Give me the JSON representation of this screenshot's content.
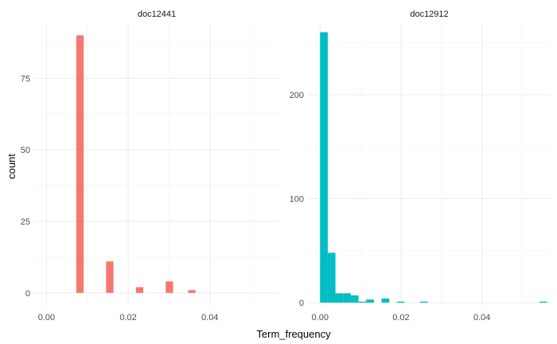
{
  "chart_data": {
    "type": "bar",
    "xlabel": "Term_frequency",
    "ylabel": "count",
    "grid": true,
    "legend": "none",
    "panels": [
      {
        "title": "doc12441",
        "color": "#f8766d",
        "xlim": [
          -0.003,
          0.057
        ],
        "ylim": [
          -4.5,
          94
        ],
        "x_ticks": [
          0.0,
          0.02,
          0.04
        ],
        "x_tick_labels": [
          "0.00",
          "0.02",
          "0.04"
        ],
        "y_ticks": [
          0,
          25,
          50,
          75
        ],
        "y_tick_labels": [
          "0",
          "25",
          "50",
          "75"
        ],
        "bins": [
          {
            "x0": 0.0073,
            "x1": 0.0091,
            "count": 90
          },
          {
            "x0": 0.0146,
            "x1": 0.0164,
            "count": 11
          },
          {
            "x0": 0.0219,
            "x1": 0.0237,
            "count": 2
          },
          {
            "x0": 0.0292,
            "x1": 0.031,
            "count": 4
          },
          {
            "x0": 0.0347,
            "x1": 0.0365,
            "count": 1
          }
        ]
      },
      {
        "title": "doc12912",
        "color": "#00bfc4",
        "xlim": [
          -0.003,
          0.057
        ],
        "ylim": [
          -3,
          268
        ],
        "x_ticks": [
          0.0,
          0.02,
          0.04
        ],
        "x_tick_labels": [
          "0.00",
          "0.02",
          "0.04"
        ],
        "y_ticks": [
          0,
          100,
          200
        ],
        "y_tick_labels": [
          "0",
          "100",
          "200"
        ],
        "bins": [
          {
            "x0": 0.0,
            "x1": 0.0019,
            "count": 260
          },
          {
            "x0": 0.0019,
            "x1": 0.0038,
            "count": 48
          },
          {
            "x0": 0.0038,
            "x1": 0.0057,
            "count": 9
          },
          {
            "x0": 0.0057,
            "x1": 0.0076,
            "count": 9
          },
          {
            "x0": 0.0076,
            "x1": 0.0095,
            "count": 7
          },
          {
            "x0": 0.0095,
            "x1": 0.0114,
            "count": 1
          },
          {
            "x0": 0.0114,
            "x1": 0.0133,
            "count": 3
          },
          {
            "x0": 0.0152,
            "x1": 0.0171,
            "count": 4
          },
          {
            "x0": 0.019,
            "x1": 0.0209,
            "count": 1
          },
          {
            "x0": 0.0247,
            "x1": 0.0266,
            "count": 1
          },
          {
            "x0": 0.0542,
            "x1": 0.0561,
            "count": 1
          }
        ]
      }
    ]
  }
}
